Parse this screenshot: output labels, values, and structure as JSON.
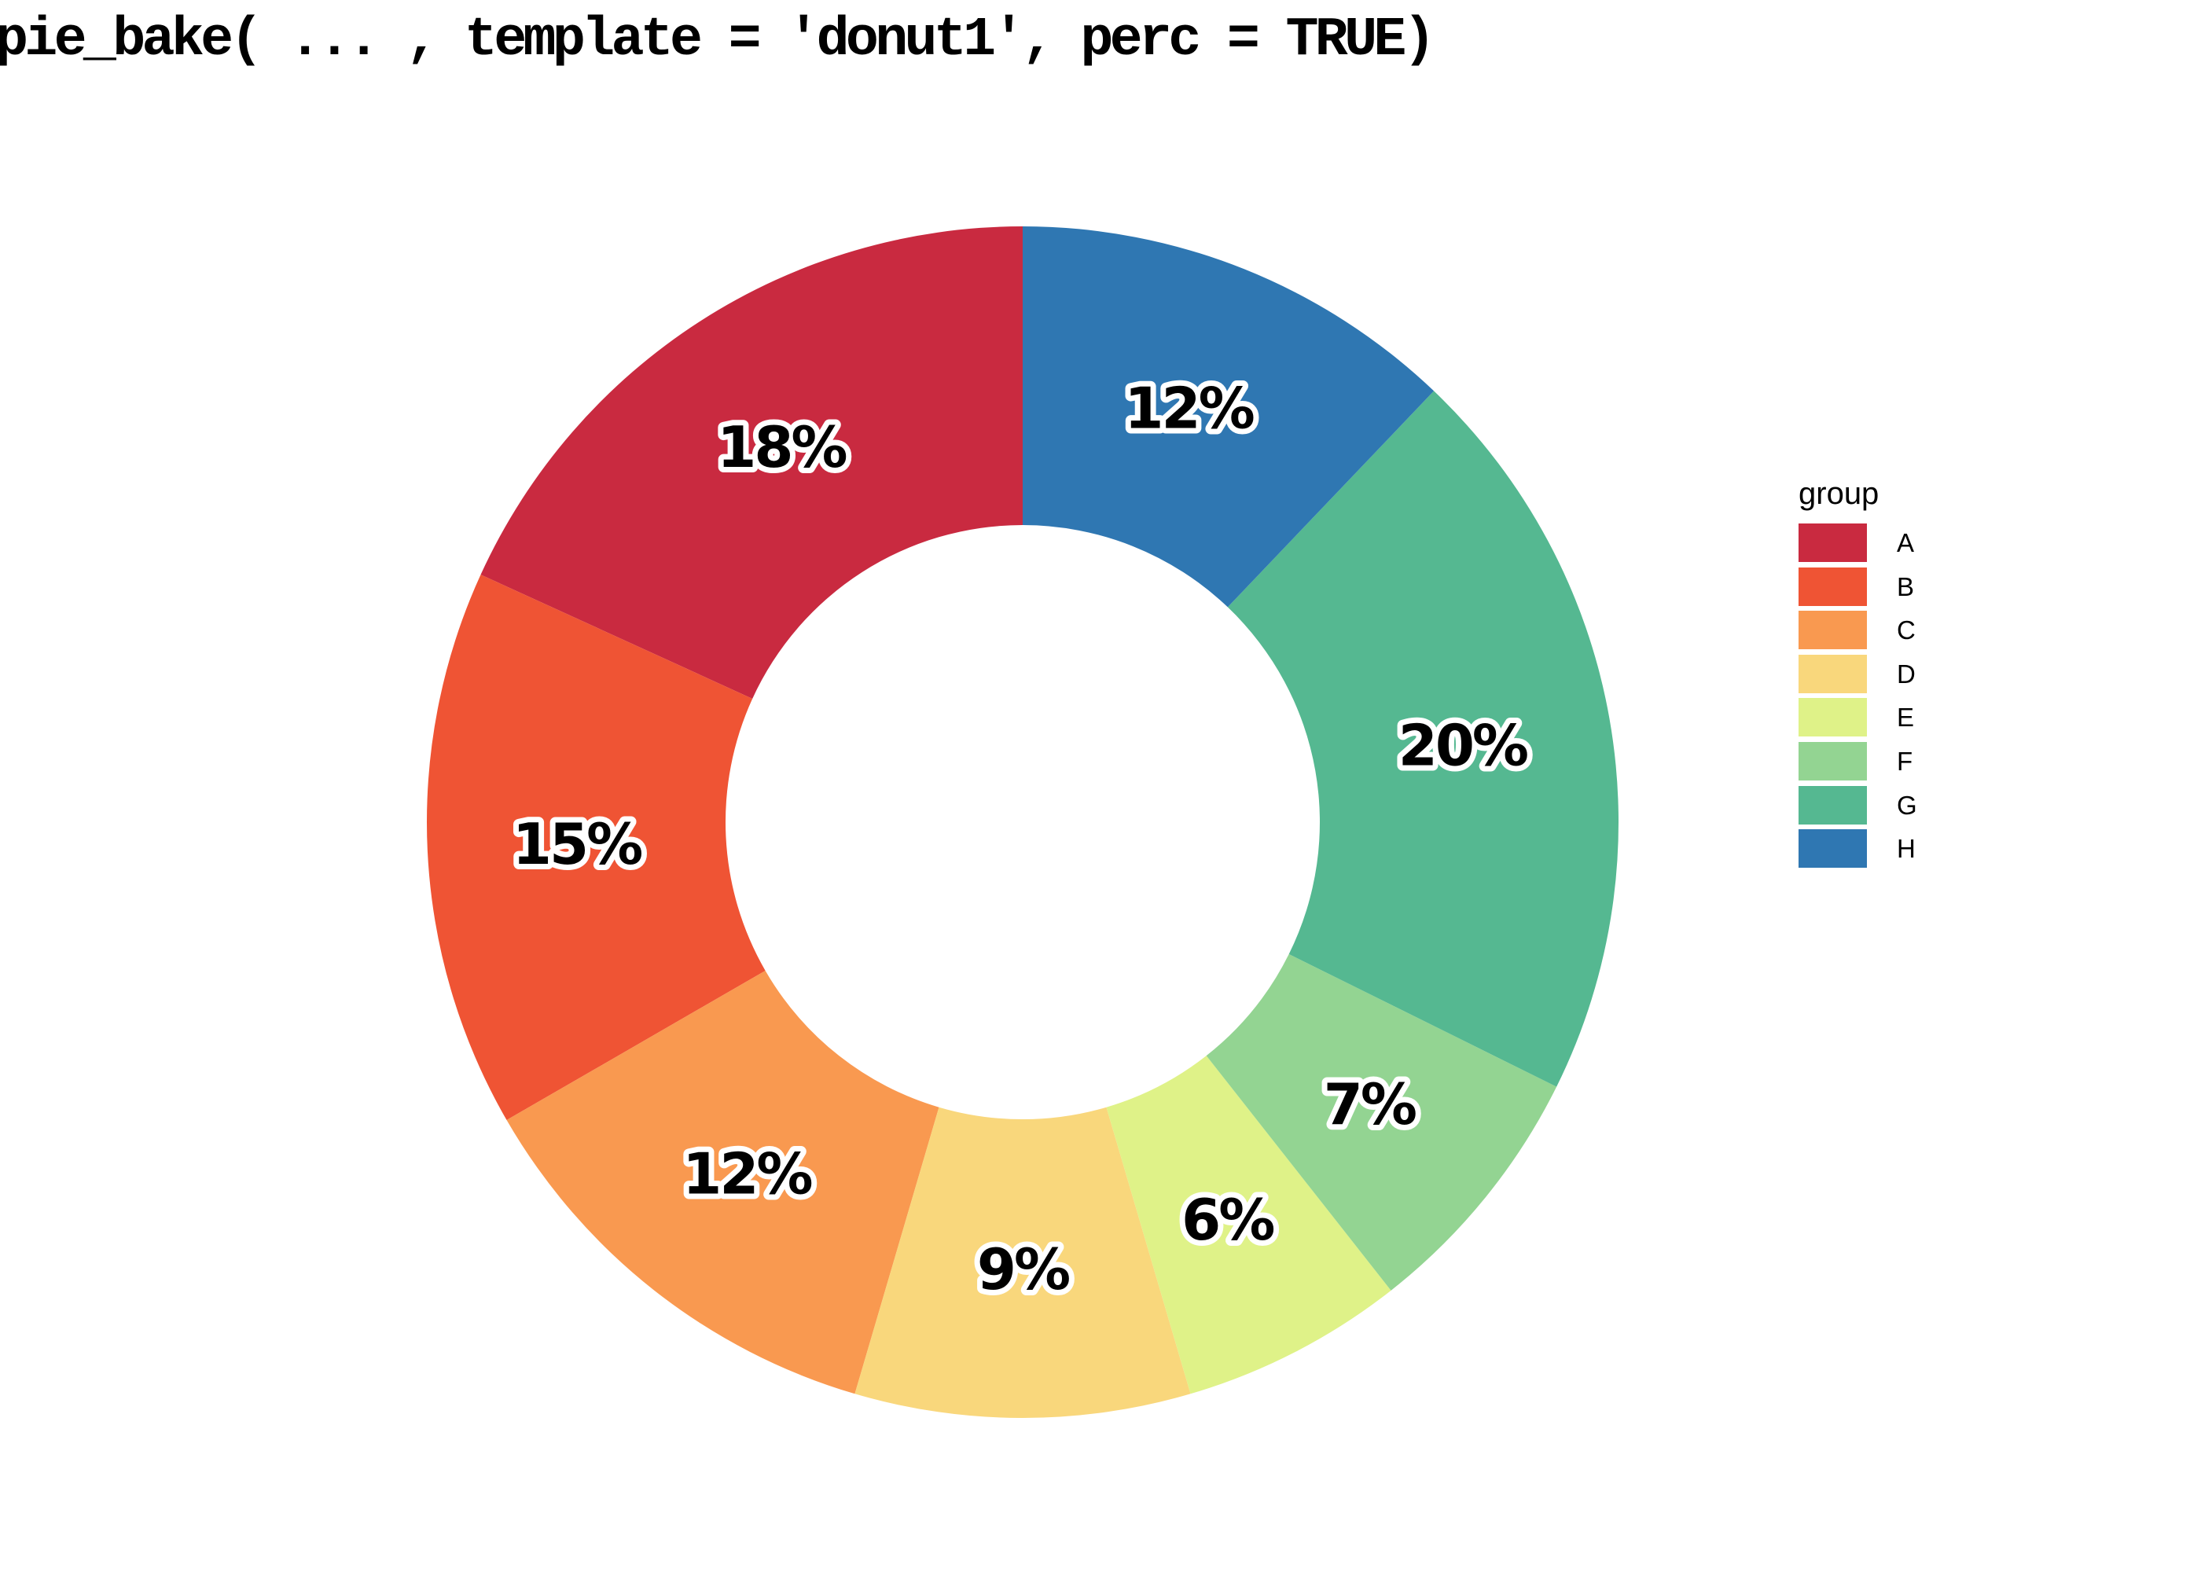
{
  "title": "pie_bake( ... , template = 'donut1', perc = TRUE)",
  "legend": {
    "title": "group"
  },
  "chart_data": {
    "type": "pie",
    "subtype": "donut",
    "title": "pie_bake( ... , template = 'donut1', perc = TRUE)",
    "legend_title": "group",
    "legend_position": "right",
    "start_angle_deg": 0,
    "direction": "counterclockwise_from_top",
    "inner_radius_ratio": 0.5,
    "categories": [
      "A",
      "B",
      "C",
      "D",
      "E",
      "F",
      "G",
      "H"
    ],
    "values": [
      18,
      15,
      12,
      9,
      6,
      7,
      20,
      12
    ],
    "percent_labels": [
      "18%",
      "15%",
      "12%",
      "9%",
      "6%",
      "7%",
      "20%",
      "12%"
    ],
    "colors": [
      "#C92A40",
      "#EF5434",
      "#F99950",
      "#F9D77C",
      "#DFF288",
      "#93D492",
      "#55B891",
      "#2F77B2"
    ],
    "label_text_color": "#000000",
    "label_halo_color": "#ffffff",
    "background_color": "#ffffff"
  }
}
